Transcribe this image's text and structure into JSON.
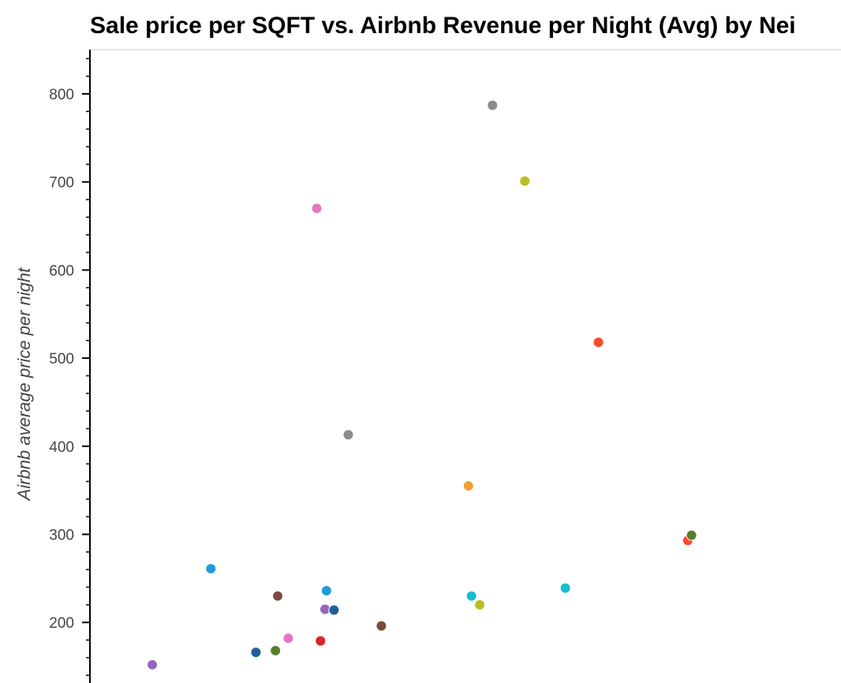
{
  "chart_data": {
    "type": "scatter",
    "title": "Sale price per SQFT vs. Airbnb Revenue per Night (Avg) by Nei",
    "xlabel": "",
    "ylabel": "Airbnb average price per night",
    "ylim": [
      140,
      850
    ],
    "yticks": [
      200,
      300,
      400,
      500,
      600,
      700,
      800
    ],
    "grid": false,
    "points": [
      {
        "x": 0.083,
        "y": 152,
        "color": "#9467bd"
      },
      {
        "x": 0.161,
        "y": 261,
        "color": "#1f9bd7"
      },
      {
        "x": 0.221,
        "y": 166,
        "color": "#1f5f9b"
      },
      {
        "x": 0.247,
        "y": 168,
        "color": "#5a7d2f"
      },
      {
        "x": 0.25,
        "y": 230,
        "color": "#7a4b3f"
      },
      {
        "x": 0.264,
        "y": 182,
        "color": "#e377c2"
      },
      {
        "x": 0.302,
        "y": 670,
        "color": "#e377c2"
      },
      {
        "x": 0.307,
        "y": 179,
        "color": "#d62728"
      },
      {
        "x": 0.313,
        "y": 215,
        "color": "#9467bd"
      },
      {
        "x": 0.315,
        "y": 236,
        "color": "#1f9bd7"
      },
      {
        "x": 0.325,
        "y": 214,
        "color": "#1f5f9b"
      },
      {
        "x": 0.344,
        "y": 413,
        "color": "#8c8c8c"
      },
      {
        "x": 0.388,
        "y": 196,
        "color": "#7a4b3f"
      },
      {
        "x": 0.504,
        "y": 355,
        "color": "#f0a030"
      },
      {
        "x": 0.508,
        "y": 230,
        "color": "#17becf"
      },
      {
        "x": 0.519,
        "y": 220,
        "color": "#bcbd22"
      },
      {
        "x": 0.536,
        "y": 787,
        "color": "#8c8c8c"
      },
      {
        "x": 0.579,
        "y": 701,
        "color": "#bcbd22"
      },
      {
        "x": 0.633,
        "y": 239,
        "color": "#17becf"
      },
      {
        "x": 0.677,
        "y": 518,
        "color": "#ff4a2a"
      },
      {
        "x": 0.796,
        "y": 293,
        "color": "#ff4a2a"
      },
      {
        "x": 0.801,
        "y": 299,
        "color": "#5a7d2f"
      }
    ]
  }
}
